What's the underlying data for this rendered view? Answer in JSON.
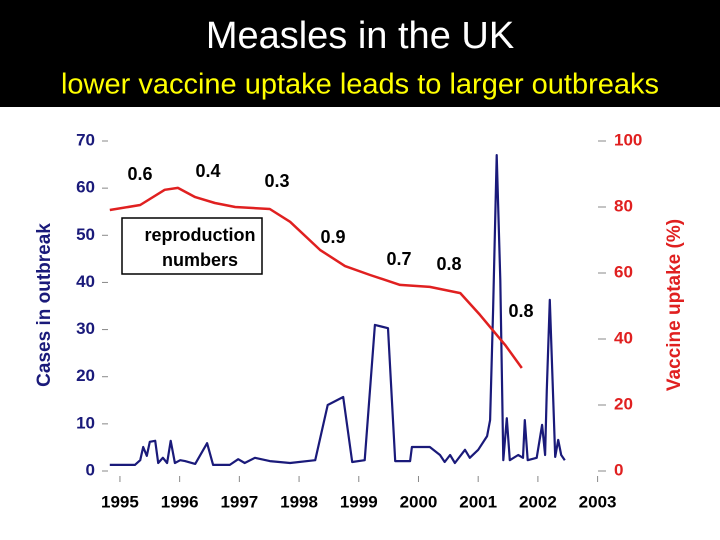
{
  "chart_data": {
    "type": "line",
    "title": "Measles in the UK",
    "subtitle": "lower vaccine uptake leads to larger outbreaks",
    "y_label": "Cases in outbreak",
    "y2_label": "Vaccine uptake (%)",
    "xlim": [
      1994.8,
      2003
    ],
    "xticks": [
      1995,
      1996,
      1997,
      1998,
      1999,
      2000,
      2001,
      2002,
      2003
    ],
    "ylim": [
      0,
      70
    ],
    "yticks": [
      0,
      10,
      20,
      30,
      40,
      50,
      60,
      70
    ],
    "y2lim": [
      0,
      100
    ],
    "y2ticks": [
      0,
      20,
      40,
      60,
      80,
      100
    ],
    "series": [
      {
        "name": "Cases in outbreak",
        "color": "#1a1a7a",
        "x": [
          1994.83,
          1995.25,
          1995.34,
          1995.39,
          1995.45,
          1995.5,
          1995.59,
          1995.64,
          1995.72,
          1995.79,
          1995.85,
          1995.92,
          1996.01,
          1996.09,
          1996.26,
          1996.46,
          1996.56,
          1996.84,
          1996.98,
          1997.09,
          1997.26,
          1997.51,
          1997.85,
          1998.27,
          1998.48,
          1998.74,
          1998.89,
          1999.1,
          1999.27,
          1999.49,
          1999.61,
          1999.86,
          1999.89,
          2000.19,
          2000.36,
          2000.44,
          2000.53,
          2000.61,
          2000.78,
          2000.86,
          2001.0,
          2001.15,
          2001.2,
          2001.25,
          2001.31,
          2001.37,
          2001.42,
          2001.48,
          2001.53,
          2001.67,
          2001.75,
          2001.78,
          2001.83,
          2001.98,
          2002.07,
          2002.12,
          2002.15,
          2002.2,
          2002.29,
          2002.34,
          2002.39,
          2002.45
        ],
        "values": [
          1.3,
          1.3,
          2.3,
          5.1,
          3.2,
          6.2,
          6.4,
          1.7,
          2.8,
          1.7,
          6.4,
          1.7,
          2.3,
          2.1,
          1.5,
          5.9,
          1.3,
          1.3,
          2.5,
          1.7,
          2.8,
          2.1,
          1.7,
          2.3,
          14,
          15.7,
          1.9,
          2.3,
          31,
          30.3,
          2.1,
          2.1,
          5.1,
          5.1,
          3.4,
          1.9,
          3.4,
          1.7,
          4.5,
          2.8,
          4.5,
          7.4,
          10.8,
          34.2,
          67,
          40.5,
          2.3,
          11.2,
          2.3,
          3.4,
          2.8,
          10.8,
          2.3,
          2.8,
          9.8,
          3.4,
          17.2,
          36.3,
          3,
          6.6,
          3.4,
          2.3
        ]
      },
      {
        "name": "Vaccine uptake (%)",
        "color": "#e02020",
        "axis": "y2",
        "x": [
          1994.83,
          1995.34,
          1995.75,
          1995.97,
          1996.26,
          1996.59,
          1996.93,
          1997.51,
          1997.85,
          1998.35,
          1998.77,
          1999.19,
          1999.69,
          2000.19,
          2000.7,
          2001.03,
          2001.45,
          2001.73
        ],
        "values": [
          79.1,
          80.6,
          85.2,
          85.8,
          83,
          81.2,
          80,
          79.4,
          75.5,
          67,
          62.1,
          59.4,
          56.4,
          55.8,
          53.9,
          47.3,
          38.2,
          31.2
        ]
      }
    ],
    "annotations": [
      "0.6",
      "0.4",
      "0.3",
      "0.9",
      "0.7",
      "0.8",
      "0.8"
    ],
    "annotation_box": [
      "reproduction",
      "numbers"
    ]
  }
}
